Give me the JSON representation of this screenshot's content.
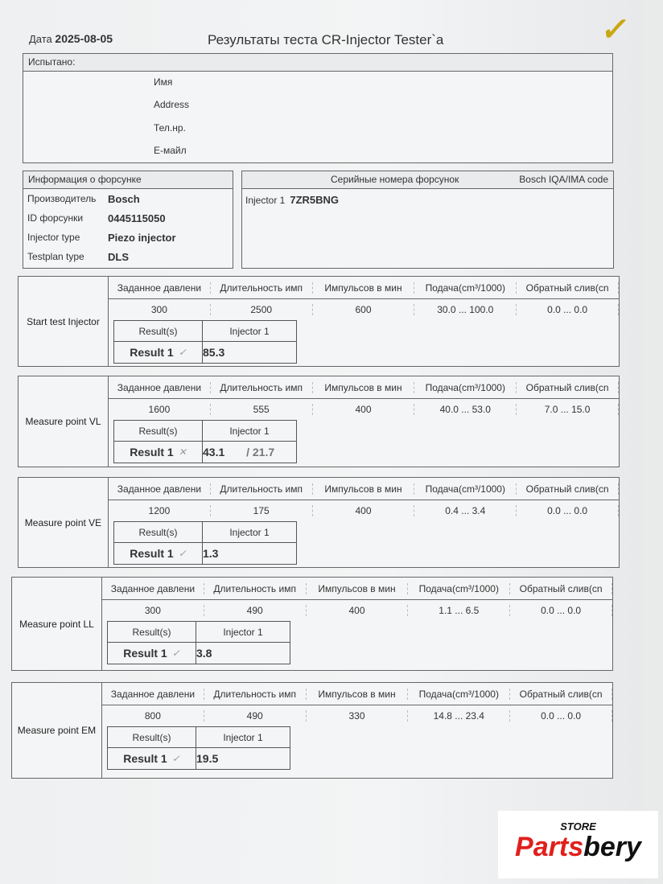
{
  "header": {
    "date_label": "Дата",
    "date": "2025-08-05",
    "title": "Результаты теста CR-Injector Tester`a"
  },
  "contact": {
    "heading": "Испытано:",
    "fields": [
      "Имя",
      "Address",
      "Тел.нр.",
      "E-майл"
    ]
  },
  "injector_info": {
    "heading": "Информация о форсунке",
    "rows": [
      {
        "key": "Производитель",
        "value": "Bosch"
      },
      {
        "key": "ID форсунки",
        "value": "0445115050"
      },
      {
        "key": "Injector type",
        "value": "Piezo injector"
      },
      {
        "key": "Testplan type",
        "value": "DLS"
      }
    ]
  },
  "serials": {
    "heading": "Серийные номера форсунок",
    "code_heading": "Bosch IQA/IMA code",
    "rows": [
      {
        "label": "Injector 1",
        "value": "7ZR5BNG"
      }
    ]
  },
  "columns": [
    "Заданное давлени",
    "Длительность имп",
    "Импульсов в мин",
    "Подача(cm³/1000)",
    "Обратный слив(cn"
  ],
  "result_labels": {
    "results": "Result(s)",
    "injector": "Injector 1"
  },
  "tests": [
    {
      "name": "Start test Injector",
      "values": [
        "300",
        "2500",
        "600",
        "30.0 ... 100.0",
        "0.0 ... 0.0"
      ],
      "result_label": "Result 1",
      "status": "pass",
      "status_mark": "✓",
      "result": "85.3",
      "result_sub": ""
    },
    {
      "name": "Measure point VL",
      "values": [
        "1600",
        "555",
        "400",
        "40.0 ... 53.0",
        "7.0 ... 15.0"
      ],
      "result_label": "Result 1",
      "status": "fail",
      "status_mark": "✕",
      "result": "43.1",
      "result_sub": " / 21.7"
    },
    {
      "name": "Measure point VE",
      "values": [
        "1200",
        "175",
        "400",
        "0.4 ... 3.4",
        "0.0 ... 0.0"
      ],
      "result_label": "Result 1",
      "status": "pass",
      "status_mark": "✓",
      "result": "1.3",
      "result_sub": ""
    },
    {
      "name": "Measure point LL",
      "values": [
        "300",
        "490",
        "400",
        "1.1 ... 6.5",
        "0.0 ... 0.0"
      ],
      "result_label": "Result 1",
      "status": "pass",
      "status_mark": "✓",
      "result": "3.8",
      "result_sub": ""
    },
    {
      "name": "Measure point EM",
      "values": [
        "800",
        "490",
        "330",
        "14.8 ... 23.4",
        "0.0 ... 0.0"
      ],
      "result_label": "Result 1",
      "status": "pass",
      "status_mark": "✓",
      "result": "19.5",
      "result_sub": ""
    }
  ],
  "logo": {
    "top": "STORE",
    "brand_red": "Parts",
    "brand_black": "bery"
  },
  "colors": {
    "logo_red": "#e0201c",
    "check_mark": "#c9a713"
  }
}
